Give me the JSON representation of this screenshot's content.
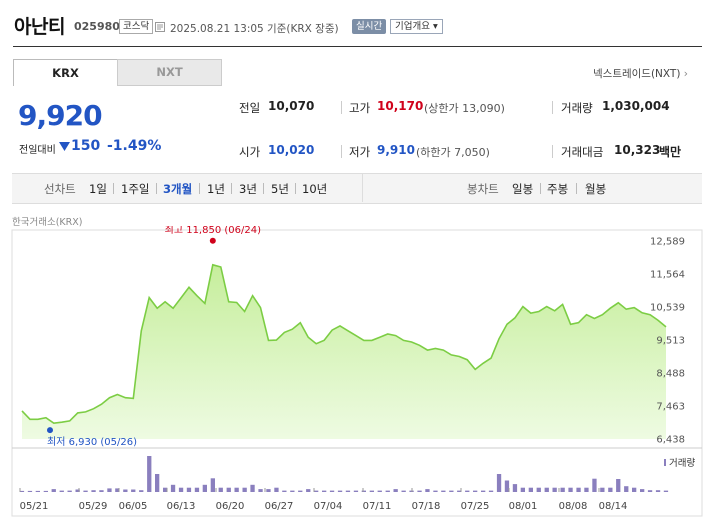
{
  "header": {
    "name": "아난티",
    "code": "025980",
    "market": "코스닥",
    "datetime": "2025.08.21 13:05 기준(KRX 장중)",
    "realtime": "실시간",
    "overview": "기업개요 ▾"
  },
  "tabs": {
    "krx": "KRX",
    "nxt": "NXT",
    "nxt_link": "넥스트레이드(NXT)",
    "nxt_link_arrow": "›"
  },
  "quote": {
    "price": "9,920",
    "change_label": "전일대비",
    "change": "150",
    "change_pct": "-1.49%",
    "prev_close_label": "전일",
    "prev_close": "10,070",
    "high_label": "고가",
    "high": "10,170",
    "upper_limit": "(상한가 13,090)",
    "volume_label": "거래량",
    "volume": "1,030,004",
    "open_label": "시가",
    "open": "10,020",
    "low_label": "저가",
    "low": "9,910",
    "lower_limit": "(하한가 7,050)",
    "amount_label": "거래대금",
    "amount": "10,323",
    "amount_unit": "백만"
  },
  "toolbar": {
    "line_chart": "선차트",
    "periods": [
      "1일",
      "1주일",
      "3개월",
      "1년",
      "3년",
      "5년",
      "10년"
    ],
    "selected_period": "3개월",
    "candle_chart": "봉차트",
    "candles": [
      "일봉",
      "주봉",
      "월봉"
    ]
  },
  "exchange_label": "한국거래소(KRX)",
  "colors": {
    "up": "#d0021b",
    "down": "#2255c4",
    "line": "#7ccd44",
    "volume": "#8a7fbe"
  },
  "chart_data": {
    "type": "area",
    "y_ticks": [
      "12,589",
      "11,564",
      "10,539",
      "9,513",
      "8,488",
      "7,463",
      "6,438"
    ],
    "ylim": [
      6438,
      12589
    ],
    "x_ticks": [
      "05/21",
      "05/29",
      "06/05",
      "06/13",
      "06/20",
      "06/27",
      "07/04",
      "07/11",
      "07/18",
      "07/25",
      "08/01",
      "08/08",
      "08/14"
    ],
    "high_annotation": "최고 11,850 (06/24)",
    "low_annotation": "최저 6,930 (05/26)",
    "volume_legend": "거래량",
    "prices": [
      7310,
      7050,
      7050,
      7100,
      6930,
      6960,
      7000,
      7250,
      7280,
      7380,
      7520,
      7720,
      7820,
      7720,
      7700,
      9800,
      10830,
      10500,
      10700,
      10500,
      10820,
      11150,
      10890,
      10650,
      11850,
      11780,
      10700,
      10680,
      10400,
      10890,
      10520,
      9500,
      9510,
      9750,
      9850,
      10050,
      9600,
      9400,
      9500,
      9820,
      9950,
      9800,
      9650,
      9500,
      9500,
      9600,
      9700,
      9650,
      9500,
      9450,
      9350,
      9200,
      9250,
      9200,
      9050,
      9000,
      8900,
      8600,
      8790,
      8950,
      9550,
      10000,
      10200,
      10550,
      10350,
      10400,
      10550,
      10420,
      10620,
      10000,
      10050,
      10300,
      10180,
      10300,
      10500,
      10670,
      10470,
      10520,
      10360,
      10300,
      10130,
      9920
    ],
    "volumes": [
      0.03,
      0.03,
      0.03,
      0.03,
      0.08,
      0.04,
      0.04,
      0.07,
      0.04,
      0.05,
      0.05,
      0.1,
      0.1,
      0.07,
      0.07,
      0.05,
      1.0,
      0.5,
      0.12,
      0.2,
      0.12,
      0.12,
      0.12,
      0.2,
      0.38,
      0.12,
      0.12,
      0.12,
      0.12,
      0.2,
      0.08,
      0.08,
      0.12,
      0.04,
      0.04,
      0.04,
      0.08,
      0.04,
      0.04,
      0.04,
      0.04,
      0.04,
      0.04,
      0.04,
      0.04,
      0.04,
      0.04,
      0.08,
      0.04,
      0.04,
      0.04,
      0.08,
      0.04,
      0.04,
      0.04,
      0.04,
      0.04,
      0.04,
      0.04,
      0.04,
      0.5,
      0.32,
      0.22,
      0.12,
      0.12,
      0.12,
      0.12,
      0.12,
      0.12,
      0.12,
      0.12,
      0.12,
      0.37,
      0.12,
      0.12,
      0.36,
      0.16,
      0.12,
      0.08,
      0.05,
      0.05,
      0.04
    ]
  }
}
